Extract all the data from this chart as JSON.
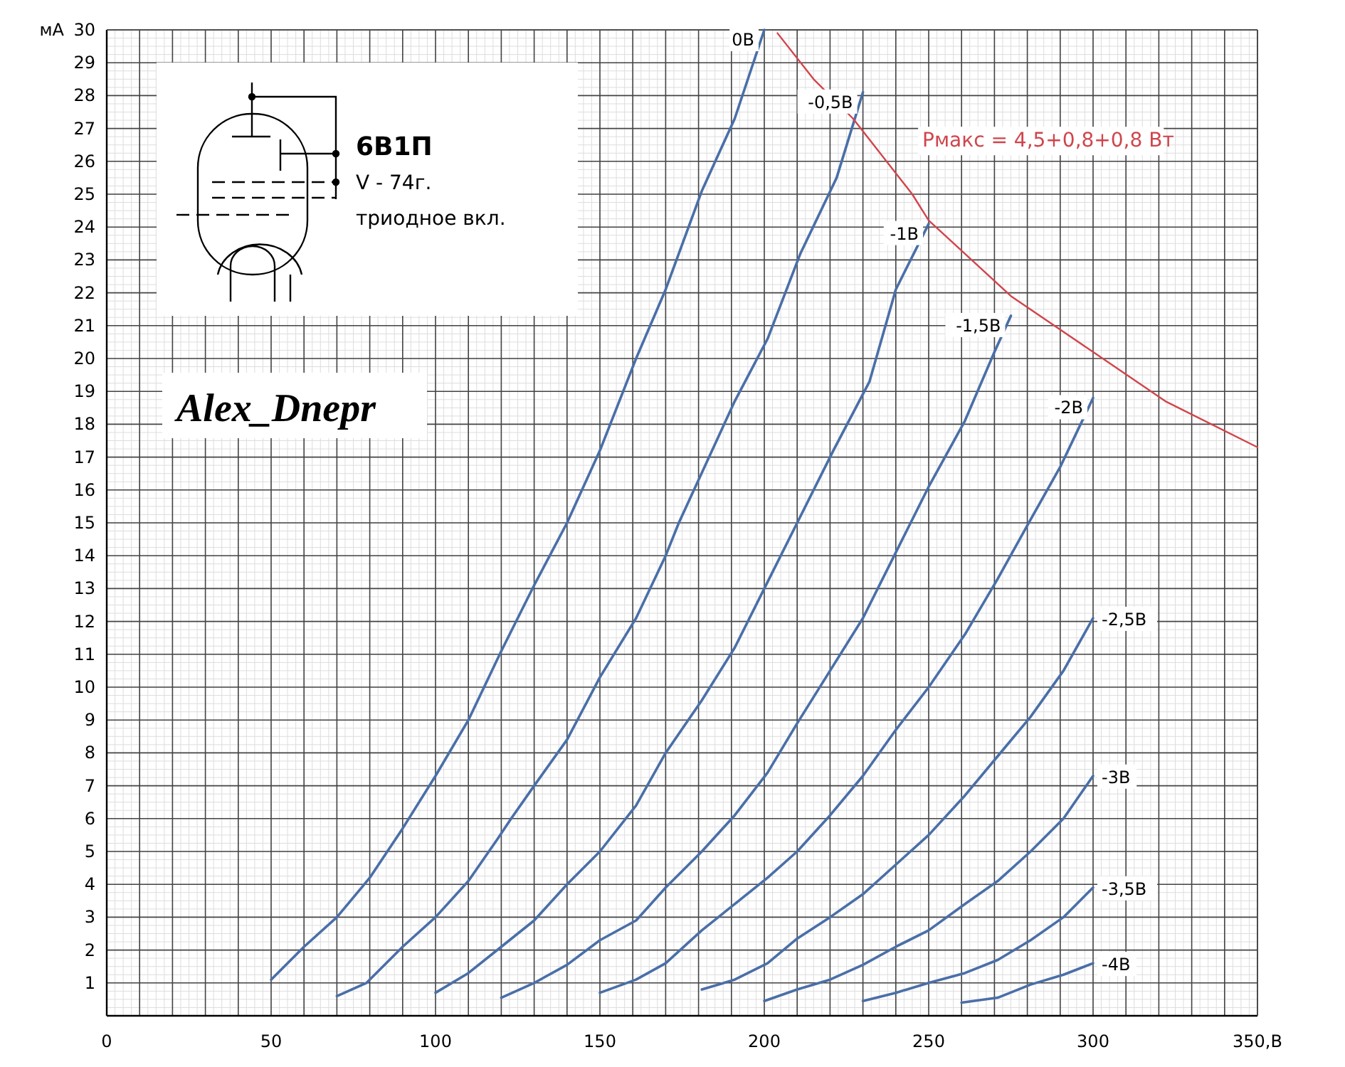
{
  "chart_data": {
    "type": "line",
    "title": "6В1П",
    "ylabel": "мА",
    "annotations": [
      "V - 74г.",
      "триодное вкл.",
      "Alex_Dnepr"
    ],
    "xlim": [
      0,
      350
    ],
    "ylim": [
      0,
      30
    ],
    "xticks": [
      0,
      {
        "value": 10,
        "label": null
      },
      {
        "value": 20,
        "label": null
      },
      {
        "value": 30,
        "label": null
      },
      {
        "value": 40,
        "label": null
      },
      50,
      {
        "value": 60,
        "label": null
      },
      {
        "value": 70,
        "label": null
      },
      {
        "value": 80,
        "label": null
      },
      {
        "value": 90,
        "label": null
      },
      100,
      {
        "value": 110,
        "label": null
      },
      {
        "value": 120,
        "label": null
      },
      {
        "value": 130,
        "label": null
      },
      {
        "value": 140,
        "label": null
      },
      150,
      {
        "value": 160,
        "label": null
      },
      {
        "value": 170,
        "label": null
      },
      {
        "value": 180,
        "label": null
      },
      {
        "value": 190,
        "label": null
      },
      200,
      {
        "value": 210,
        "label": null
      },
      {
        "value": 220,
        "label": null
      },
      {
        "value": 230,
        "label": null
      },
      {
        "value": 240,
        "label": null
      },
      250,
      {
        "value": 260,
        "label": null
      },
      {
        "value": 270,
        "label": null
      },
      {
        "value": 280,
        "label": null
      },
      {
        "value": 290,
        "label": null
      },
      300,
      {
        "value": 310,
        "label": null
      },
      {
        "value": 320,
        "label": null
      },
      {
        "value": 330,
        "label": null
      },
      {
        "value": 340,
        "label": null
      },
      {
        "value": 350,
        "label": "350,В"
      }
    ],
    "yticks": [
      1,
      2,
      3,
      4,
      5,
      6,
      7,
      8,
      9,
      10,
      11,
      12,
      13,
      14,
      15,
      16,
      17,
      18,
      19,
      20,
      21,
      22,
      23,
      24,
      25,
      26,
      27,
      28,
      29,
      30
    ],
    "grid": true,
    "marker": "none",
    "line_style": "solid",
    "series": [
      {
        "name": "0В",
        "color": "#4a6fa8",
        "x": [
          50,
          60,
          70,
          80,
          90,
          100,
          110,
          120,
          130,
          140,
          150,
          161,
          170,
          181,
          191,
          200
        ],
        "values": [
          1.1,
          2.1,
          3.0,
          4.2,
          5.7,
          7.3,
          9.0,
          11.1,
          13.1,
          15.0,
          17.2,
          20.0,
          22.1,
          25.1,
          27.3,
          30
        ]
      },
      {
        "name": "-0,5В",
        "color": "#4a6fa8",
        "x": [
          70,
          79,
          90,
          100,
          110,
          119,
          123,
          130,
          140,
          150,
          161,
          170,
          174,
          191,
          201,
          211,
          222,
          230
        ],
        "values": [
          0.6,
          1.0,
          2.1,
          3.0,
          4.1,
          5.4,
          6.0,
          7.0,
          8.4,
          10.3,
          12.1,
          14.0,
          15.0,
          18.7,
          20.6,
          23.2,
          25.5,
          28.1
        ]
      },
      {
        "name": "-1В",
        "color": "#4a6fa8",
        "x": [
          100,
          110,
          120,
          130,
          140,
          150,
          161,
          170,
          181,
          191,
          201,
          210,
          221,
          232,
          240,
          250
        ],
        "values": [
          0.7,
          1.3,
          2.1,
          2.9,
          4.0,
          5.0,
          6.4,
          8.0,
          9.6,
          11.2,
          13.2,
          15.0,
          17.2,
          19.3,
          22.1,
          24.1
        ]
      },
      {
        "name": "-1,5В",
        "color": "#4a6fa8",
        "x": [
          120,
          130,
          140,
          150,
          161,
          170,
          181,
          191,
          201,
          210,
          220,
          230,
          240,
          250,
          261,
          270,
          275
        ],
        "values": [
          0.55,
          1.0,
          1.55,
          2.3,
          2.9,
          3.9,
          5.0,
          6.1,
          7.4,
          8.9,
          10.5,
          12.1,
          14.1,
          16.1,
          18.1,
          20.2,
          21.3
        ]
      },
      {
        "name": "-2В",
        "color": "#4a6fa8",
        "x": [
          150,
          161,
          170,
          181,
          191,
          201,
          210,
          220,
          230,
          240,
          250,
          261,
          271,
          281,
          290,
          300
        ],
        "values": [
          0.7,
          1.1,
          1.6,
          2.6,
          3.4,
          4.2,
          5.0,
          6.1,
          7.3,
          8.7,
          10.0,
          11.6,
          13.3,
          15.1,
          16.7,
          18.8
        ]
      },
      {
        "name": "-2,5В",
        "color": "#4a6fa8",
        "x": [
          181,
          191,
          201,
          210,
          220,
          230,
          240,
          250,
          261,
          271,
          281,
          291,
          300
        ],
        "values": [
          0.8,
          1.1,
          1.6,
          2.35,
          3.0,
          3.7,
          4.6,
          5.5,
          6.7,
          7.9,
          9.1,
          10.5,
          12.1
        ]
      },
      {
        "name": "-3В",
        "color": "#4a6fa8",
        "x": [
          200,
          210,
          220,
          230,
          240,
          250,
          261,
          271,
          281,
          291,
          300
        ],
        "values": [
          0.45,
          0.8,
          1.1,
          1.55,
          2.1,
          2.6,
          3.4,
          4.1,
          5.0,
          6.0,
          7.3
        ]
      },
      {
        "name": "-3,5В",
        "color": "#4a6fa8",
        "x": [
          230,
          240,
          250,
          261,
          271,
          281,
          291,
          300
        ],
        "values": [
          0.45,
          0.7,
          1.0,
          1.3,
          1.7,
          2.3,
          3.0,
          3.9
        ]
      },
      {
        "name": "-4В",
        "color": "#4a6fa8",
        "x": [
          260,
          271,
          281,
          291,
          300
        ],
        "values": [
          0.4,
          0.55,
          0.95,
          1.25,
          1.6
        ]
      },
      {
        "name": "Рмакс = 4,5+0,8+0,8 Вт",
        "color": "#d0454c",
        "x": [
          204,
          215,
          227,
          245,
          250,
          275,
          300,
          322,
          350
        ],
        "values": [
          29.9,
          28.5,
          27.3,
          25.0,
          24.2,
          21.9,
          20.2,
          18.7,
          17.3
        ]
      }
    ]
  }
}
